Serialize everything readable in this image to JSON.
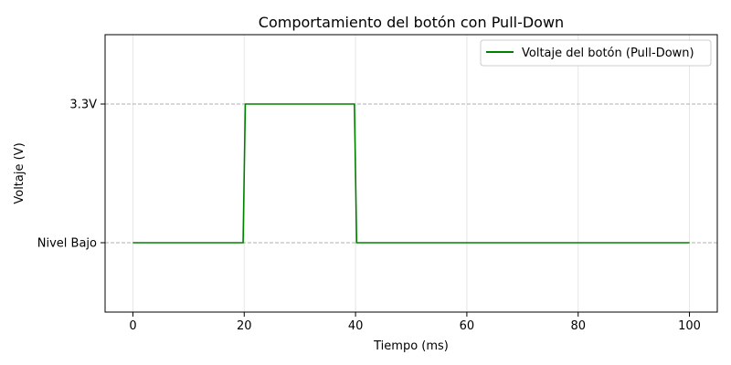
{
  "chart_data": {
    "type": "line",
    "title": "Comportamiento del botón con Pull-Down",
    "xlabel": "Tiempo (ms)",
    "ylabel": "Voltaje (V)",
    "xlim": [
      -5,
      105
    ],
    "ylim": [
      -1.0,
      3.0
    ],
    "x_ticks": [
      0,
      20,
      40,
      60,
      80,
      100
    ],
    "y_ticks": [
      {
        "value": 0,
        "label": "Nivel Bajo"
      },
      {
        "value": 2,
        "label": "3.3V"
      }
    ],
    "grid": true,
    "legend_position": "top-right",
    "series": [
      {
        "name": "Voltaje del botón (Pull-Down)",
        "color": "#008000",
        "x": [
          0,
          19.8,
          20.2,
          39.8,
          40.2,
          100
        ],
        "y": [
          0,
          0,
          2,
          2,
          0,
          0
        ]
      }
    ]
  }
}
